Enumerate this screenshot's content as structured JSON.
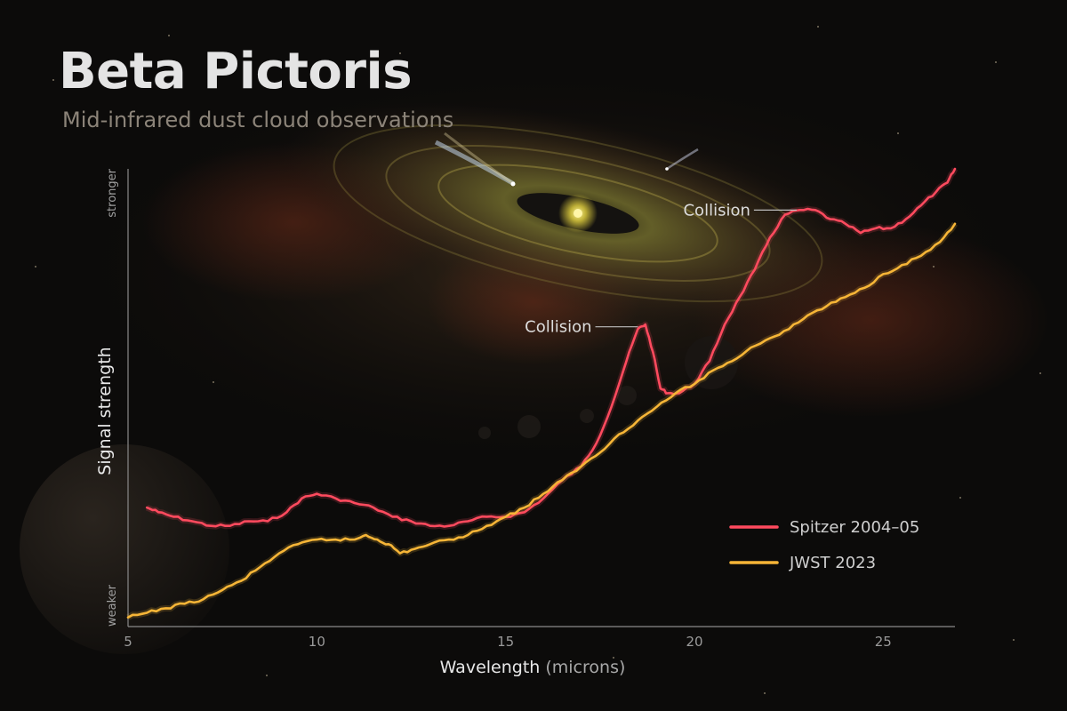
{
  "page": {
    "title": "Beta Pictoris",
    "subtitle": "Mid-infrared dust cloud observations"
  },
  "chart_data": {
    "type": "line",
    "title": "Beta Pictoris",
    "subtitle": "Mid-infrared dust cloud observations",
    "xlabel": "Wavelength",
    "xlabel_unit": "(microns)",
    "ylabel": "Signal strength",
    "ylabel_low": "weaker",
    "ylabel_high": "stronger",
    "xlim": [
      5,
      26.9
    ],
    "ylim": [
      0,
      100
    ],
    "xticks": [
      5,
      10,
      15,
      20,
      25
    ],
    "grid": false,
    "legend_position": "bottom-right",
    "series": [
      {
        "name": "Spitzer 2004–05",
        "color": "#ff4a5e",
        "x": [
          5.5,
          5.8,
          6.2,
          6.7,
          7.2,
          7.7,
          8.2,
          8.7,
          9.2,
          9.6,
          10.0,
          10.5,
          11.0,
          11.5,
          12.0,
          12.5,
          13.0,
          13.5,
          14.0,
          14.5,
          15.0,
          15.5,
          16.0,
          16.5,
          17.0,
          17.4,
          17.8,
          18.2,
          18.5,
          18.7,
          18.9,
          19.1,
          19.3,
          19.6,
          20.0,
          20.4,
          20.8,
          21.2,
          21.6,
          22.0,
          22.4,
          22.8,
          23.2,
          23.6,
          24.0,
          24.4,
          24.8,
          25.2,
          25.6,
          26.0,
          26.4,
          26.7,
          26.9
        ],
        "y": [
          26,
          25,
          24,
          23,
          22,
          22,
          23,
          23,
          25,
          28,
          29,
          28,
          27,
          26,
          24,
          23,
          22,
          22,
          23,
          24,
          24,
          25,
          28,
          32,
          35,
          40,
          48,
          58,
          65,
          66,
          60,
          52,
          51,
          51,
          53,
          58,
          66,
          72,
          78,
          85,
          90,
          91,
          91,
          89,
          88,
          86,
          87,
          87,
          89,
          92,
          95,
          97,
          100
        ],
        "annotations": [
          {
            "text": "Collision",
            "x": 18.6
          },
          {
            "text": "Collision",
            "x": 22.8
          }
        ]
      },
      {
        "name": "JWST 2023",
        "color": "#f6b537",
        "x": [
          5.0,
          5.5,
          6.0,
          6.5,
          7.0,
          7.5,
          8.0,
          8.5,
          9.0,
          9.5,
          10.0,
          10.5,
          11.0,
          11.3,
          11.6,
          11.9,
          12.2,
          12.6,
          13.0,
          13.5,
          14.0,
          14.5,
          15.0,
          15.5,
          16.0,
          16.5,
          17.0,
          17.5,
          18.0,
          18.5,
          19.0,
          19.5,
          20.0,
          20.5,
          21.0,
          21.5,
          22.0,
          22.5,
          23.0,
          23.5,
          24.0,
          24.5,
          25.0,
          25.5,
          26.0,
          26.5,
          26.9
        ],
        "y": [
          2,
          3,
          4,
          5,
          6,
          8,
          10,
          13,
          16,
          18,
          19,
          19,
          19,
          20,
          19,
          18,
          16,
          17,
          18,
          19,
          20,
          22,
          24,
          26,
          29,
          32,
          35,
          38,
          42,
          45,
          48,
          51,
          53,
          56,
          58,
          61,
          63,
          65,
          68,
          70,
          72,
          74,
          77,
          79,
          81,
          84,
          88
        ]
      }
    ]
  }
}
